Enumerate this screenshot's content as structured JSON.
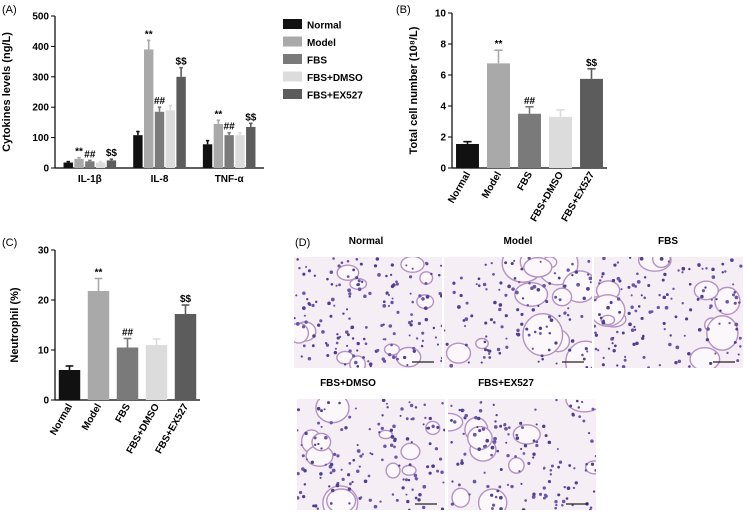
{
  "panels": {
    "A": "(A)",
    "B": "(B)",
    "C": "(C)",
    "D": "(D)"
  },
  "colors": {
    "Normal": "#111111",
    "Model": "#a9a9a9",
    "FBS": "#7a7a7a",
    "FBS+DMSO": "#dcdcdc",
    "FBS+EX527": "#5c5c5c"
  },
  "chart_data": [
    {
      "panel": "A",
      "type": "bar",
      "ylabel": "Cytokines levels (ng/L)",
      "ylim": [
        0,
        500
      ],
      "yticks": [
        "0",
        "100",
        "200",
        "300",
        "400",
        "500"
      ],
      "categories": [
        "IL-1β",
        "IL-8",
        "TNF-α"
      ],
      "legend_placement": "right",
      "series": [
        {
          "name": "Normal",
          "values": [
            18,
            108,
            78
          ],
          "errors": [
            3,
            12,
            12
          ]
        },
        {
          "name": "Model",
          "values": [
            30,
            390,
            145
          ],
          "errors": [
            4,
            30,
            12
          ]
        },
        {
          "name": "FBS",
          "values": [
            22,
            185,
            108
          ],
          "errors": [
            3,
            15,
            8
          ]
        },
        {
          "name": "FBS+DMSO",
          "values": [
            18,
            190,
            108
          ],
          "errors": [
            3,
            15,
            8
          ]
        },
        {
          "name": "FBS+EX527",
          "values": [
            25,
            300,
            135
          ],
          "errors": [
            4,
            30,
            12
          ]
        }
      ],
      "annotations": [
        {
          "category": 0,
          "series": 1,
          "text": "**"
        },
        {
          "category": 0,
          "series": 2,
          "text": "##"
        },
        {
          "category": 0,
          "series": 4,
          "text": "$$"
        },
        {
          "category": 1,
          "series": 1,
          "text": "**"
        },
        {
          "category": 1,
          "series": 2,
          "text": "##"
        },
        {
          "category": 1,
          "series": 4,
          "text": "$$"
        },
        {
          "category": 2,
          "series": 1,
          "text": "**"
        },
        {
          "category": 2,
          "series": 2,
          "text": "##"
        },
        {
          "category": 2,
          "series": 4,
          "text": "$$"
        }
      ]
    },
    {
      "panel": "B",
      "type": "bar",
      "ylabel": "Total cell number (10⁸/L)",
      "ylim": [
        0,
        10
      ],
      "yticks": [
        "0",
        "2",
        "4",
        "6",
        "8",
        "10"
      ],
      "categories": [
        "Normal",
        "Model",
        "FBS",
        "FBS+DMSO",
        "FBS+EX527"
      ],
      "values": [
        1.55,
        6.75,
        3.5,
        3.3,
        5.75
      ],
      "errors": [
        0.15,
        0.85,
        0.45,
        0.45,
        0.65
      ],
      "annotations": [
        "",
        "**",
        "##",
        "",
        "$$"
      ]
    },
    {
      "panel": "C",
      "type": "bar",
      "ylabel": "Neutrophil (%)",
      "ylim": [
        0,
        30
      ],
      "yticks": [
        "0",
        "10",
        "20",
        "30"
      ],
      "categories": [
        "Normal",
        "Model",
        "FBS",
        "FBS+DMSO",
        "FBS+EX527"
      ],
      "values": [
        6,
        21.8,
        10.5,
        11,
        17.2
      ],
      "errors": [
        0.8,
        2.5,
        1.8,
        1.2,
        1.8
      ],
      "annotations": [
        "",
        "**",
        "##",
        "",
        "$$"
      ]
    }
  ],
  "micrographs": {
    "titles": [
      "Normal",
      "Model",
      "FBS",
      "FBS+DMSO",
      "FBS+EX527"
    ]
  }
}
